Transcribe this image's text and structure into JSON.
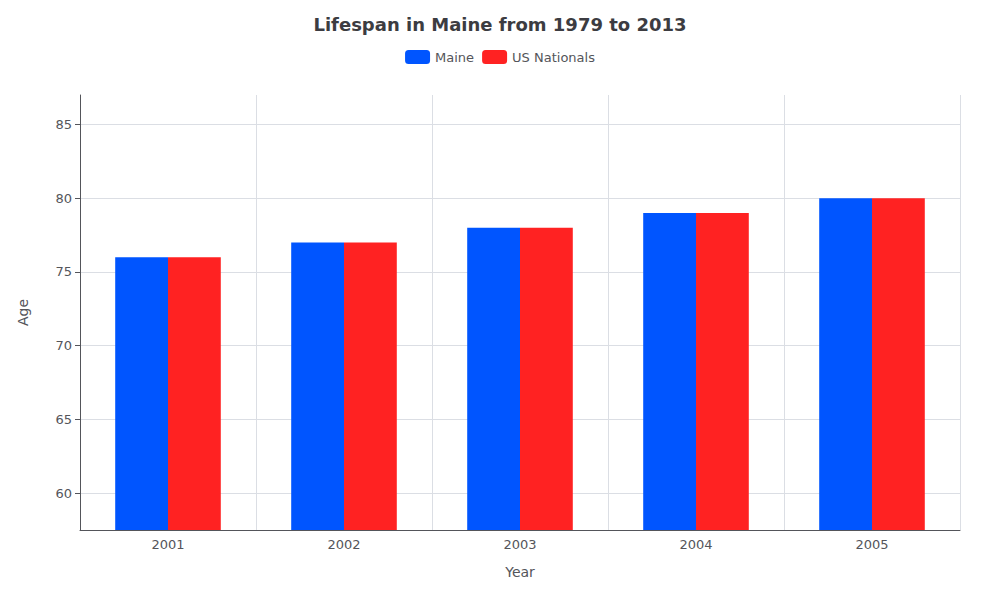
{
  "chart_data": {
    "type": "bar",
    "title": "Lifespan in Maine from 1979 to 2013",
    "xlabel": "Year",
    "ylabel": "Age",
    "categories": [
      "2001",
      "2002",
      "2003",
      "2004",
      "2005"
    ],
    "series": [
      {
        "name": "Maine",
        "color": "#0055ff",
        "values": [
          76.0,
          77.0,
          78.0,
          79.0,
          80.0
        ]
      },
      {
        "name": "US Nationals",
        "color": "#ff2222",
        "values": [
          76.0,
          77.0,
          78.0,
          79.0,
          80.0
        ]
      }
    ],
    "ylim": [
      57.5,
      87.0
    ],
    "yticks": [
      60,
      65,
      70,
      75,
      80,
      85
    ],
    "grid": true,
    "legend": "top"
  }
}
